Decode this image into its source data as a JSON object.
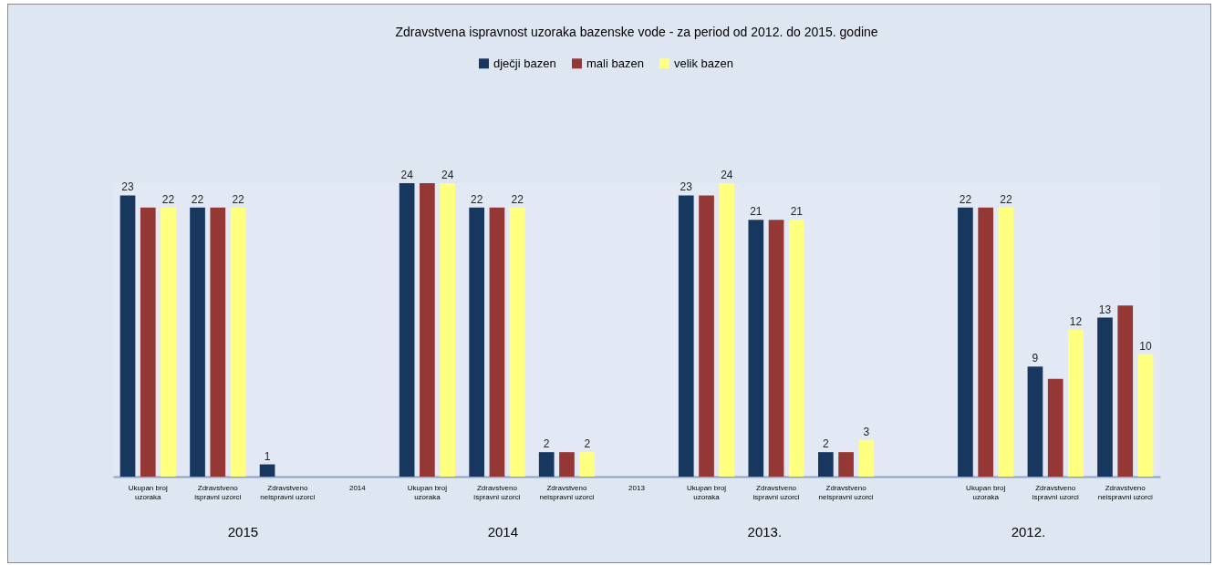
{
  "chart_data": {
    "type": "bar",
    "title": "Zdravstvena ispravnost uzoraka bazenske vode - za period od 2012. do 2015. godine",
    "categories": [
      "Ukupan broj uzoraka",
      "Zdravstveno ispravni uzorci",
      "Zdravstveno neispravni uzorci",
      "2014",
      "Ukupan broj uzoraka",
      "Zdravstveno ispravni uzorci",
      "Zdravstveno neispravni uzorci",
      "2013",
      "Ukupan broj uzoraka",
      "Zdravstveno ispravni uzorci",
      "Zdravstveno neispravni uzorci",
      null,
      "Ukupan broj uzoraka",
      "Zdravstveno ispravni uzorci",
      "Zdravstveno neispravni uzorci"
    ],
    "series": [
      {
        "name": "dječji bazen",
        "color": "#17375e",
        "values": [
          23,
          22,
          1,
          null,
          24,
          22,
          2,
          null,
          23,
          21,
          2,
          null,
          22,
          9,
          13
        ],
        "value_labels": [
          "23",
          "22",
          "1",
          null,
          "24",
          "22",
          "2",
          null,
          "23",
          "21",
          "2",
          null,
          "22",
          "9",
          "13"
        ]
      },
      {
        "name": "mali bazen",
        "color": "#953735",
        "values": [
          22,
          22,
          0,
          null,
          24,
          22,
          2,
          null,
          23,
          21,
          2,
          null,
          22,
          8,
          14
        ],
        "value_labels": [
          null,
          null,
          null,
          null,
          null,
          null,
          null,
          null,
          null,
          null,
          null,
          null,
          null,
          null,
          null
        ]
      },
      {
        "name": "velik bazen",
        "color": "#ffff80",
        "values": [
          22,
          22,
          0,
          null,
          24,
          22,
          2,
          null,
          24,
          21,
          3,
          null,
          22,
          12,
          10
        ],
        "value_labels": [
          "22",
          "22",
          null,
          null,
          "24",
          "22",
          "2",
          null,
          "24",
          "21",
          "3",
          null,
          "22",
          "12",
          "10"
        ]
      }
    ],
    "annotations": [
      "2015",
      "2014",
      "2013.",
      "2012."
    ],
    "legend": "top",
    "grid": false
  }
}
